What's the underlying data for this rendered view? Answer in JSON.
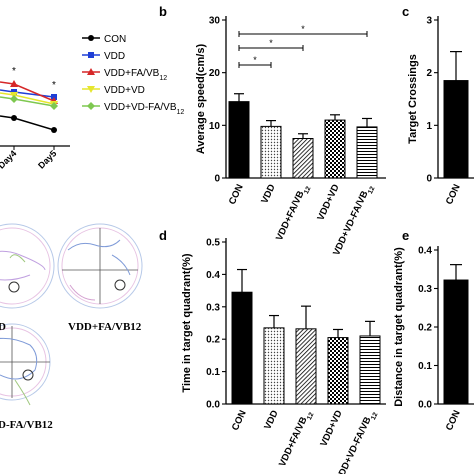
{
  "panels": {
    "b": "b",
    "c": "c",
    "d": "d",
    "e": "e"
  },
  "colors": {
    "CON": "#000000",
    "VDD": "#1f3fd6",
    "VDD+FA/VB12": "#d62728",
    "VDD+VD": "#e6e62e",
    "VDD+VD-FA/VB12": "#7ec850"
  },
  "chart_data": [
    {
      "id": "a",
      "type": "line",
      "x": [
        "Day4",
        "Day5"
      ],
      "series": [
        {
          "name": "CON",
          "marker": "circle",
          "values": [
            null,
            null
          ]
        },
        {
          "name": "VDD",
          "marker": "square",
          "values": [
            null,
            null
          ]
        },
        {
          "name": "VDD+FA/VB12",
          "marker": "triangle",
          "values": [
            null,
            null
          ]
        },
        {
          "name": "VDD+VD",
          "marker": "triangle-down",
          "values": [
            null,
            null
          ]
        },
        {
          "name": "VDD+VD-FA/VB12",
          "marker": "diamond",
          "values": [
            null,
            null
          ]
        }
      ],
      "legend": [
        "CON",
        "VDD",
        "VDD+FA/VB12",
        "VDD+VD",
        "VDD+VD-FA/VB12"
      ],
      "annotations": [
        "*",
        "*"
      ],
      "legend_placement": "right"
    },
    {
      "id": "b",
      "type": "bar",
      "ylabel": "Average speed(cm/s)",
      "ylim": [
        0,
        30
      ],
      "yticks": [
        "0",
        "10",
        "20",
        "30"
      ],
      "categories": [
        "CON",
        "VDD",
        "VDD+FA/VB12",
        "VDD+VD",
        "VDD+VD-FA/VB12"
      ],
      "values": [
        14.5,
        9.8,
        7.5,
        11.0,
        9.7
      ],
      "errors": [
        1.5,
        1.1,
        0.9,
        1.0,
        1.6
      ],
      "significance": [
        "*",
        "*",
        "*",
        "*"
      ]
    },
    {
      "id": "c",
      "type": "bar",
      "ylabel": "Target Crossings",
      "ylim": [
        0,
        3
      ],
      "yticks": [
        "0",
        "1",
        "2",
        "3"
      ],
      "categories": [
        "CON"
      ],
      "values": [
        1.85
      ],
      "errors": [
        0.55
      ]
    },
    {
      "id": "d",
      "type": "bar",
      "ylabel": "Time in target quadrant(%)",
      "ylim": [
        0,
        0.5
      ],
      "yticks": [
        "0.0",
        "0.1",
        "0.2",
        "0.3",
        "0.4",
        "0.5"
      ],
      "categories": [
        "CON",
        "VDD",
        "VDD+FA/VB12",
        "VDD+VD",
        "VDD+VD-FA/VB12"
      ],
      "values": [
        0.345,
        0.235,
        0.232,
        0.205,
        0.21
      ],
      "errors": [
        0.07,
        0.038,
        0.07,
        0.025,
        0.045
      ]
    },
    {
      "id": "e",
      "type": "bar",
      "ylabel": "Distance in target quadrant(%)",
      "ylim": [
        0,
        0.4
      ],
      "yticks": [
        "0.0",
        "0.1",
        "0.2",
        "0.3",
        "0.4"
      ],
      "categories": [
        "CON"
      ],
      "values": [
        0.322
      ],
      "errors": [
        0.04
      ]
    }
  ],
  "swim_labels": [
    "D",
    "VDD+FA/VB12",
    "D-FA/VB12"
  ]
}
